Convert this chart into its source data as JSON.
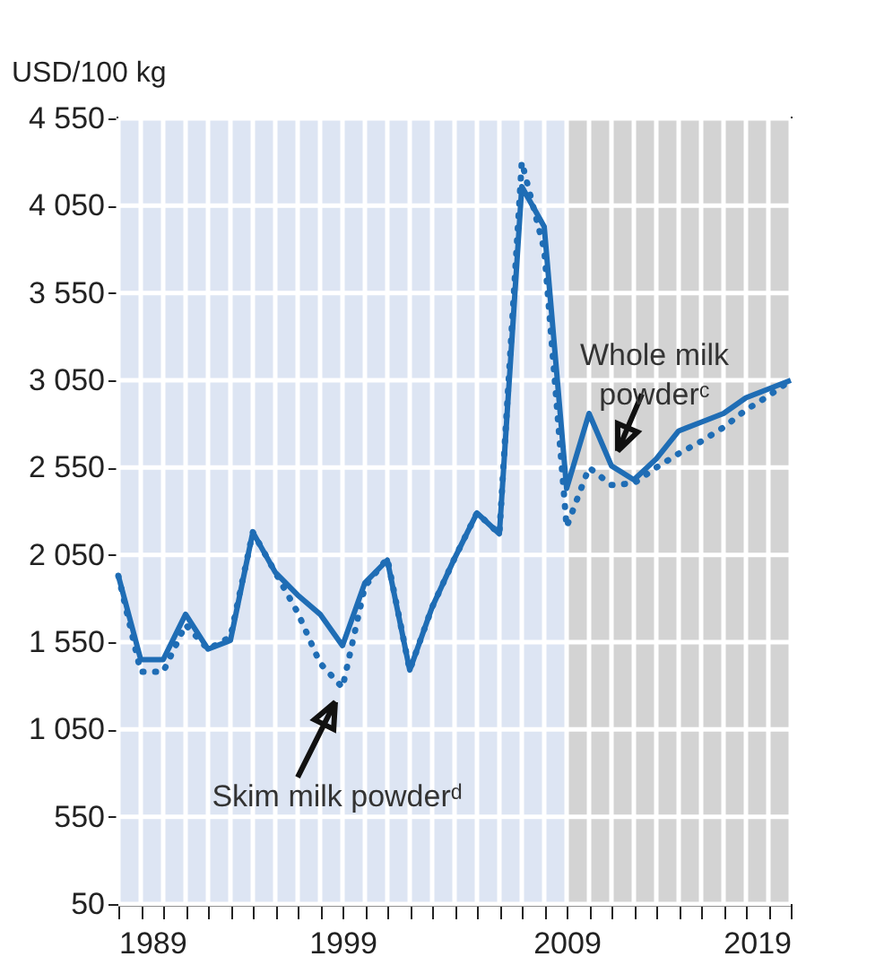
{
  "chart_data": {
    "type": "line",
    "ylabel": "USD/100 kg",
    "x": [
      1989,
      1990,
      1991,
      1992,
      1993,
      1994,
      1995,
      1996,
      1997,
      1998,
      1999,
      2000,
      2001,
      2002,
      2003,
      2004,
      2005,
      2006,
      2007,
      2008,
      2009,
      2010,
      2011,
      2012,
      2013,
      2014,
      2015,
      2016,
      2017,
      2018,
      2019
    ],
    "series": [
      {
        "color": "#1f6db5",
        "line_style": "solid",
        "values": [
          1930,
          1450,
          1450,
          1710,
          1510,
          1560,
          2180,
          1950,
          1820,
          1710,
          1530,
          1890,
          2020,
          1390,
          1750,
          2030,
          2290,
          2170,
          4160,
          3930,
          2430,
          2860,
          2560,
          2480,
          2600,
          2760,
          2810,
          2860,
          2950,
          3000,
          3050
        ]
      },
      {
        "color": "#1f6db5",
        "line_style": "dotted",
        "values": [
          1930,
          1380,
          1380,
          1650,
          1510,
          1580,
          2180,
          1950,
          1720,
          1430,
          1290,
          1870,
          2030,
          1390,
          1750,
          2030,
          2290,
          2170,
          4300,
          3800,
          2210,
          2550,
          2450,
          2460,
          2550,
          2630,
          2700,
          2780,
          2880,
          2960,
          3050
        ]
      }
    ],
    "xlim": [
      1989,
      2019
    ],
    "xticks": [
      1989,
      {
        "value": 1990,
        "label": null
      },
      {
        "value": 1991,
        "label": null
      },
      {
        "value": 1992,
        "label": null
      },
      {
        "value": 1993,
        "label": null
      },
      {
        "value": 1994,
        "label": null
      },
      {
        "value": 1995,
        "label": null
      },
      {
        "value": 1996,
        "label": null
      },
      {
        "value": 1997,
        "label": null
      },
      {
        "value": 1998,
        "label": null
      },
      1999,
      {
        "value": 2000,
        "label": null
      },
      {
        "value": 2001,
        "label": null
      },
      {
        "value": 2002,
        "label": null
      },
      {
        "value": 2003,
        "label": null
      },
      {
        "value": 2004,
        "label": null
      },
      {
        "value": 2005,
        "label": null
      },
      {
        "value": 2006,
        "label": null
      },
      {
        "value": 2007,
        "label": null
      },
      {
        "value": 2008,
        "label": null
      },
      2009,
      {
        "value": 2010,
        "label": null
      },
      {
        "value": 2011,
        "label": null
      },
      {
        "value": 2012,
        "label": null
      },
      {
        "value": 2013,
        "label": null
      },
      {
        "value": 2014,
        "label": null
      },
      {
        "value": 2015,
        "label": null
      },
      {
        "value": 2016,
        "label": null
      },
      {
        "value": 2017,
        "label": null
      },
      {
        "value": 2018,
        "label": null
      },
      2019
    ],
    "ylim": [
      50,
      4550
    ],
    "yticks": [
      50,
      550,
      {
        "value": 1050,
        "label": "1 050"
      },
      {
        "value": 1550,
        "label": "1 550"
      },
      {
        "value": 2050,
        "label": "2 050"
      },
      {
        "value": 2550,
        "label": "2 550"
      },
      {
        "value": 3050,
        "label": "3 050"
      },
      {
        "value": 3550,
        "label": "3 550"
      },
      {
        "value": 4050,
        "label": "4 050"
      },
      {
        "value": 4550,
        "label": "4 550"
      }
    ],
    "grid": true,
    "bands": [
      {
        "axis": "x",
        "from": 2009,
        "to": 2019,
        "color": "#d3d3d3"
      }
    ],
    "annotations": [
      {
        "text": "Whole milk powderᶜ",
        "x": 2011,
        "y": 2560
      },
      {
        "text": "Skim milk powderᵈ",
        "x": 1999,
        "y": 1290
      }
    ]
  }
}
